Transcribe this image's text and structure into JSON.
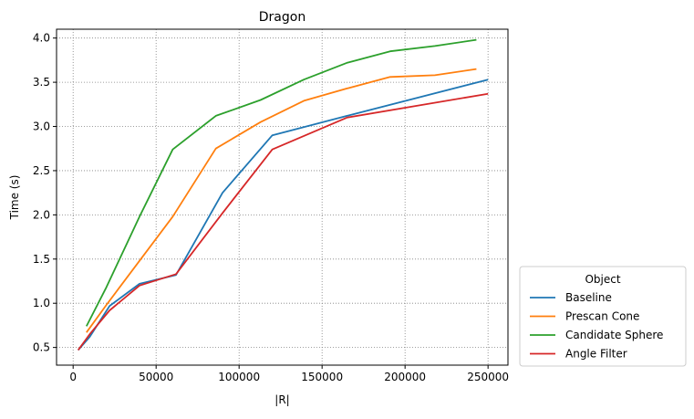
{
  "chart_data": {
    "type": "line",
    "title": "Dragon",
    "xlabel": "|R|",
    "ylabel": "Time (s)",
    "xlim": [
      -10000,
      262000
    ],
    "ylim": [
      0.3,
      4.1
    ],
    "xticks": [
      0,
      50000,
      100000,
      150000,
      200000,
      250000
    ],
    "xtick_labels": [
      "0",
      "50000",
      "100000",
      "150000",
      "200000",
      "250000"
    ],
    "yticks": [
      0.5,
      1.0,
      1.5,
      2.0,
      2.5,
      3.0,
      3.5,
      4.0
    ],
    "ytick_labels": [
      "0.5",
      "1.0",
      "1.5",
      "2.0",
      "2.5",
      "3.0",
      "3.5",
      "4.0"
    ],
    "grid": true,
    "legend": {
      "title": "Object",
      "placement": "outside-right-bottom"
    },
    "series": [
      {
        "name": "Baseline",
        "color": "#1f77b4",
        "x": [
          3000,
          10000,
          22000,
          40000,
          62000,
          90000,
          120000,
          165000,
          250000
        ],
        "y": [
          0.47,
          0.62,
          0.97,
          1.22,
          1.32,
          2.25,
          2.9,
          3.12,
          3.53
        ]
      },
      {
        "name": "Prescan Cone",
        "color": "#ff7f0e",
        "x": [
          8000,
          20000,
          40000,
          60000,
          86000,
          113000,
          139000,
          165000,
          191000,
          218000,
          243000
        ],
        "y": [
          0.67,
          0.98,
          1.48,
          1.98,
          2.75,
          3.05,
          3.29,
          3.43,
          3.56,
          3.58,
          3.65
        ]
      },
      {
        "name": "Candidate Sphere",
        "color": "#2ca02c",
        "x": [
          8000,
          20000,
          40000,
          60000,
          86000,
          113000,
          139000,
          165000,
          191000,
          218000,
          243000
        ],
        "y": [
          0.74,
          1.18,
          1.98,
          2.74,
          3.12,
          3.3,
          3.53,
          3.72,
          3.85,
          3.91,
          3.98
        ]
      },
      {
        "name": "Angle Filter",
        "color": "#d62728",
        "x": [
          3000,
          10000,
          22000,
          40000,
          62000,
          90000,
          120000,
          165000,
          250000
        ],
        "y": [
          0.47,
          0.65,
          0.92,
          1.2,
          1.33,
          2.02,
          2.74,
          3.1,
          3.37
        ]
      }
    ]
  }
}
